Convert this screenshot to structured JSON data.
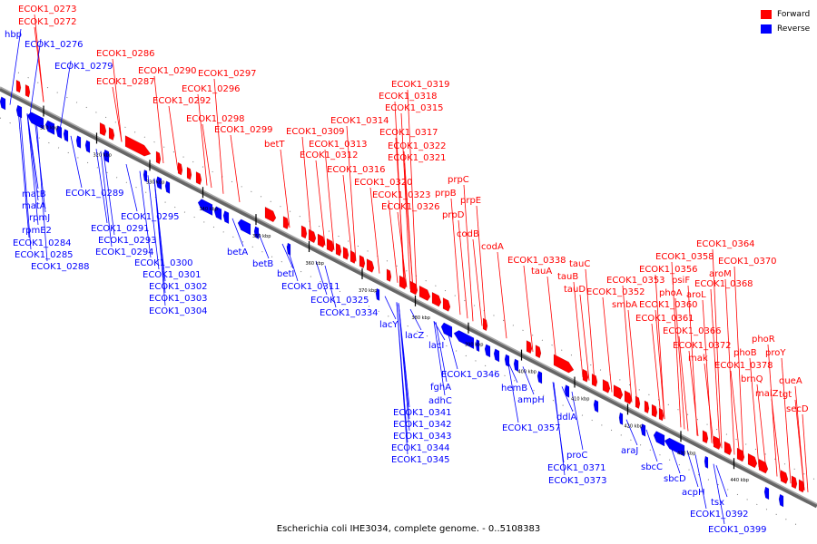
{
  "colors": {
    "forward": "#ff0000",
    "reverse": "#0000ff",
    "axis": "#555555",
    "text_f": "#cc0000",
    "text_r": "#0000cc"
  },
  "legend": {
    "forward_label": "Forward",
    "reverse_label": "Reverse"
  },
  "caption": "Escherichia coli IHE3034, complete genome. - 0..5108383",
  "axis_ticks": [
    "310 kbp",
    "320 kbp",
    "330 kbp",
    "340 kbp",
    "350 kbp",
    "360 kbp",
    "370 kbp",
    "380 kbp",
    "390 kbp",
    "400 kbp",
    "410 kbp",
    "420 kbp",
    "430 kbp",
    "440 kbp"
  ],
  "forward_labels": [
    "ECOK1_0273",
    "ECOK1_0272",
    "ECOK1_0286",
    "ECOK1_0287",
    "ECOK1_0290",
    "ECOK1_0297",
    "ECOK1_0296",
    "ECOK1_0292",
    "ECOK1_0298",
    "ECOK1_0299",
    "betT",
    "ECOK1_0319",
    "ECOK1_0318",
    "ECOK1_0315",
    "ECOK1_0314",
    "ECOK1_0317",
    "ECOK1_0309",
    "ECOK1_0313",
    "ECOK1_0312",
    "ECOK1_0322",
    "ECOK1_0321",
    "ECOK1_0316",
    "ECOK1_0320",
    "ECOK1_0323",
    "ECOK1_0326",
    "prpC",
    "prpB",
    "prpE",
    "prpD",
    "codB",
    "codA",
    "ECOK1_0338",
    "tauC",
    "tauA",
    "tauB",
    "tauD",
    "ECOK1_0364",
    "ECOK1_0358",
    "ECOK1_0370",
    "ECOK1_0356",
    "aroM",
    "ECOK1_0353",
    "psiF",
    "ECOK1_0368",
    "ECOK1_0352",
    "phoA",
    "aroL",
    "smbA",
    "ECOK1_0360",
    "ECOK1_0361",
    "ECOK1_0366",
    "ECOK1_0372",
    "mak",
    "phoR",
    "phoB",
    "proY",
    "ECOK1_0378",
    "brnQ",
    "queA",
    "malZ",
    "tgt",
    "secD"
  ],
  "reverse_labels": [
    "hbp",
    "ECOK1_0276",
    "ECOK1_0279",
    "matB",
    "ECOK1_0289",
    "matA",
    "rpmJ",
    "rpmE2",
    "ECOK1_0291",
    "ECOK1_0295",
    "ECOK1_0293",
    "ECOK1_0284",
    "ECOK1_0294",
    "ECOK1_0285",
    "ECOK1_0288",
    "ECOK1_0300",
    "ECOK1_0301",
    "betA",
    "ECOK1_0302",
    "betB",
    "ECOK1_0303",
    "betI",
    "ECOK1_0304",
    "ECOK1_0311",
    "ECOK1_0325",
    "ECOK1_0334",
    "lacY",
    "lacZ",
    "lacI",
    "ECOK1_0346",
    "hemB",
    "fghA",
    "ampH",
    "adhC",
    "ECOK1_0341",
    "ECOK1_0357",
    "ddlA",
    "ECOK1_0342",
    "ECOK1_0343",
    "ECOK1_0344",
    "ECOK1_0345",
    "proC",
    "araJ",
    "ECOK1_0371",
    "sbcC",
    "ECOK1_0373",
    "sbcD",
    "acpH",
    "tsx",
    "ECOK1_0392",
    "ECOK1_0399"
  ]
}
